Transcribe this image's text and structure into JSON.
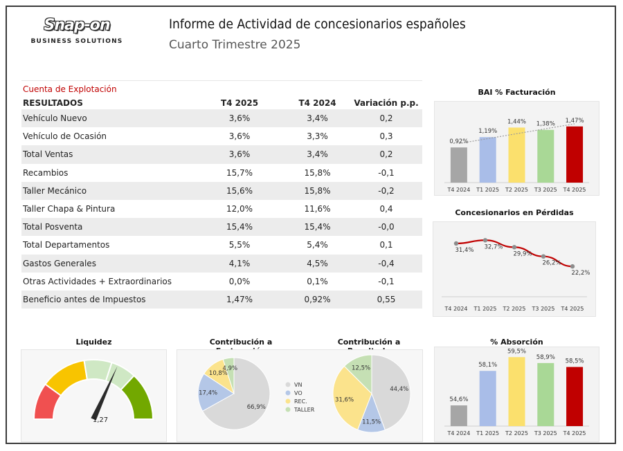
{
  "header": {
    "logo_text": "Snap-on",
    "logo_sub": "BUSINESS SOLUTIONS",
    "title": "Informe de Actividad de concesionarios españoles",
    "subtitle": "Cuarto Trimestre 2025"
  },
  "table": {
    "caption": "Cuenta de Explotación",
    "headers": [
      "RESULTADOS",
      "T4 2025",
      "T4 2024",
      "Variación p.p."
    ],
    "rows": [
      {
        "label": "Vehículo Nuevo",
        "t4_2025": "3,6%",
        "t4_2024": "3,4%",
        "var": "0,2"
      },
      {
        "label": "Vehículo de Ocasión",
        "t4_2025": "3,6%",
        "t4_2024": "3,3%",
        "var": "0,3"
      },
      {
        "label": "Total Ventas",
        "t4_2025": "3,6%",
        "t4_2024": "3,4%",
        "var": "0,2"
      },
      {
        "label": "Recambios",
        "t4_2025": "15,7%",
        "t4_2024": "15,8%",
        "var": "-0,1"
      },
      {
        "label": "Taller Mecánico",
        "t4_2025": "15,6%",
        "t4_2024": "15,8%",
        "var": "-0,2"
      },
      {
        "label": "Taller Chapa & Pintura",
        "t4_2025": "12,0%",
        "t4_2024": "11,6%",
        "var": "0,4"
      },
      {
        "label": "Total Posventa",
        "t4_2025": "15,4%",
        "t4_2024": "15,4%",
        "var": "-0,0"
      },
      {
        "label": "Total Departamentos",
        "t4_2025": "5,5%",
        "t4_2024": "5,4%",
        "var": "0,1"
      },
      {
        "label": "Gastos Generales",
        "t4_2025": "4,1%",
        "t4_2024": "4,5%",
        "var": "-0,4"
      },
      {
        "label": "Otras Actividades + Extraordinarios",
        "t4_2025": "0,0%",
        "t4_2024": "0,1%",
        "var": "-0,1"
      },
      {
        "label": "Beneficio antes de Impuestos",
        "t4_2025": "1,47%",
        "t4_2024": "0,92%",
        "var": "0,55"
      }
    ]
  },
  "colors": {
    "grey": "#a6a6a6",
    "blue": "#a9bde8",
    "yellow": "#fbe06d",
    "green": "#a9d896",
    "red": "#c00000"
  },
  "chart_data": [
    {
      "id": "bai",
      "type": "bar",
      "title": "BAI % Facturación",
      "categories": [
        "T4 2024",
        "T1 2025",
        "T2 2025",
        "T3 2025",
        "T4 2025"
      ],
      "values": [
        0.92,
        1.19,
        1.44,
        1.38,
        1.47
      ],
      "labels": [
        "0,92%",
        "1,19%",
        "1,44%",
        "1,38%",
        "1,47%"
      ],
      "trendline": true,
      "ylim": [
        0,
        1.9
      ]
    },
    {
      "id": "perdidas",
      "type": "line",
      "title": "Concesionarios en Pérdidas",
      "categories": [
        "T4 2024",
        "T1 2025",
        "T2 2025",
        "T3 2025",
        "T4 2025"
      ],
      "values": [
        31.4,
        32.7,
        29.9,
        26.2,
        22.2
      ],
      "labels": [
        "31,4%",
        "32,7%",
        "29,9%",
        "26,2%",
        "22,2%"
      ],
      "ylim": [
        10,
        40
      ]
    },
    {
      "id": "absorcion",
      "type": "bar",
      "title": "% Absorción",
      "categories": [
        "T4 2024",
        "T1 2025",
        "T2 2025",
        "T3 2025",
        "T4 2025"
      ],
      "values": [
        54.6,
        58.1,
        59.5,
        58.9,
        58.5
      ],
      "labels": [
        "54,6%",
        "58,1%",
        "59,5%",
        "58,9%",
        "58,5%"
      ],
      "ylim": [
        52.5,
        59.8
      ]
    },
    {
      "id": "facturacion",
      "type": "pie",
      "title": "Contribución a Facturación",
      "categories": [
        "VN",
        "VO",
        "REC.",
        "TALLER"
      ],
      "values": [
        66.9,
        17.4,
        10.8,
        4.9
      ],
      "labels": [
        "66,9%",
        "17,4%",
        "10,8%",
        "4,9%"
      ]
    },
    {
      "id": "resultado",
      "type": "pie",
      "title": "Contribución a Resultado",
      "categories": [
        "VN",
        "VO",
        "REC.",
        "TALLER"
      ],
      "values": [
        44.4,
        11.5,
        31.6,
        12.5
      ],
      "labels": [
        "44,4%",
        "11,5%",
        "31,6%",
        "12,5%"
      ]
    },
    {
      "id": "liquidez",
      "type": "gauge",
      "title": "Liquidez",
      "value": 1.27,
      "label": "1,27",
      "range": [
        0,
        2
      ]
    }
  ],
  "pie_legend": [
    "VN",
    "VO",
    "REC.",
    "TALLER"
  ]
}
